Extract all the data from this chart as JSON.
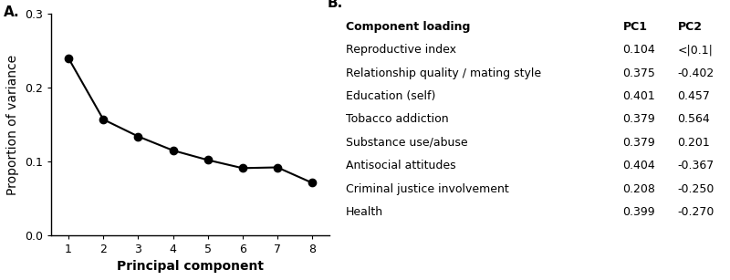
{
  "panel_a_label": "A.",
  "panel_b_label": "B.",
  "x": [
    1,
    2,
    3,
    4,
    5,
    6,
    7,
    8
  ],
  "y": [
    0.24,
    0.157,
    0.134,
    0.115,
    0.102,
    0.091,
    0.092,
    0.071
  ],
  "xlabel": "Principal component",
  "ylabel": "Proportion of variance",
  "ylim": [
    0.0,
    0.3
  ],
  "yticks": [
    0.0,
    0.1,
    0.2,
    0.3
  ],
  "xticks": [
    1,
    2,
    3,
    4,
    5,
    6,
    7,
    8
  ],
  "line_color": "#000000",
  "marker": "o",
  "marker_color": "#000000",
  "marker_size": 6,
  "table_header": [
    "Component loading",
    "PC1",
    "PC2"
  ],
  "table_rows": [
    [
      "Reproductive index",
      "0.104",
      "<|0.1|"
    ],
    [
      "Relationship quality / mating style",
      "0.375",
      "-0.402"
    ],
    [
      "Education (self)",
      "0.401",
      "0.457"
    ],
    [
      "Tobacco addiction",
      "0.379",
      "0.564"
    ],
    [
      "Substance use/abuse",
      "0.379",
      "0.201"
    ],
    [
      "Antisocial attitudes",
      "0.404",
      "-0.367"
    ],
    [
      "Criminal justice involvement",
      "0.208",
      "-0.250"
    ],
    [
      "Health",
      "0.399",
      "-0.270"
    ]
  ],
  "font_size_axis_label": 10,
  "font_size_tick": 9,
  "font_size_table": 9,
  "background_color": "#ffffff"
}
